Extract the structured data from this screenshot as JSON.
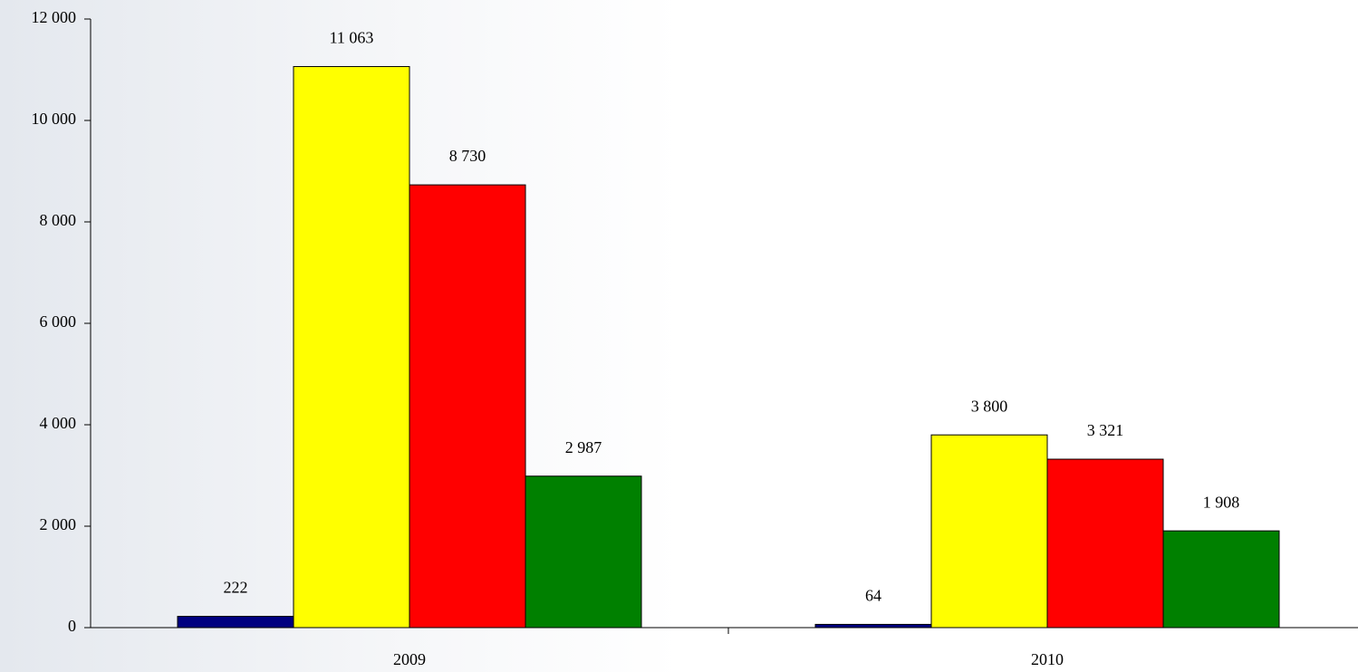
{
  "chart_data": {
    "type": "bar",
    "categories": [
      "2009",
      "2010"
    ],
    "series": [
      {
        "color": "#000080",
        "values": [
          222,
          64
        ],
        "value_labels": [
          "222",
          "64"
        ]
      },
      {
        "color": "#ffff00",
        "values": [
          11063,
          3800
        ],
        "value_labels": [
          "11 063",
          "3 800"
        ]
      },
      {
        "color": "#ff0000",
        "values": [
          8730,
          3321
        ],
        "value_labels": [
          "8 730",
          "3 321"
        ]
      },
      {
        "color": "#008000",
        "values": [
          2987,
          1908
        ],
        "value_labels": [
          "2 987",
          "1 908"
        ]
      }
    ],
    "ylim": [
      0,
      12000
    ],
    "yticks": [
      0,
      {
        "value": 2000,
        "label": "2 000"
      },
      {
        "value": 4000,
        "label": "4 000"
      },
      {
        "value": 6000,
        "label": "6 000"
      },
      {
        "value": 8000,
        "label": "8 000"
      },
      {
        "value": 10000,
        "label": "10 000"
      },
      {
        "value": 12000,
        "label": "12 000"
      }
    ],
    "grid": false
  }
}
